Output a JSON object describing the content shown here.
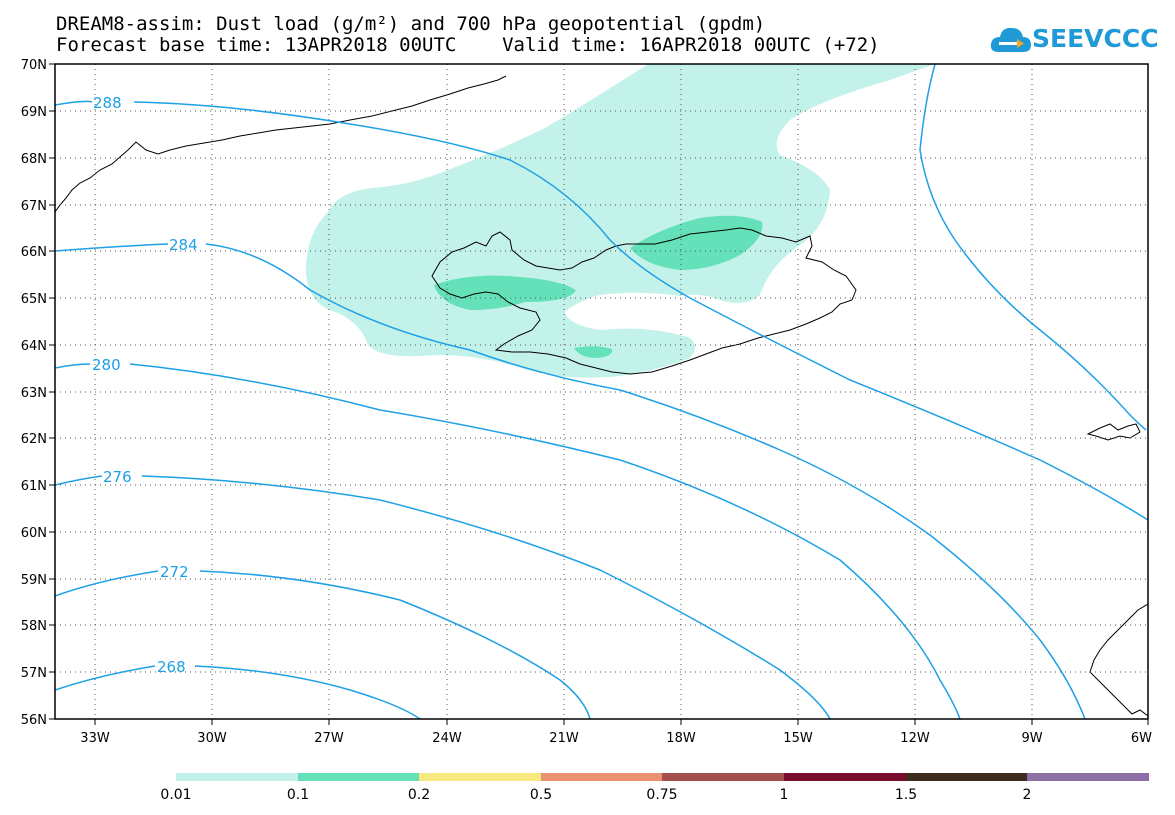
{
  "title": {
    "line1": "DREAM8-assim: Dust load (g/m²) and 700 hPa geopotential (gpdm)",
    "line2": "Forecast base time: 13APR2018 00UTC    Valid time: 16APR2018 00UTC (+72)"
  },
  "logo": {
    "text": "SEEVCCC",
    "icon": "cloud-icon",
    "color": "#1f9ad6"
  },
  "map": {
    "lat_range": [
      56,
      70
    ],
    "lon_range": [
      -34.5,
      -6
    ],
    "lat_labels": [
      "70N",
      "69N",
      "68N",
      "67N",
      "66N",
      "65N",
      "64N",
      "63N",
      "62N",
      "61N",
      "60N",
      "59N",
      "58N",
      "57N",
      "56N"
    ],
    "lon_labels": [
      {
        "lon": -33,
        "text": "33W"
      },
      {
        "lon": -30,
        "text": "30W"
      },
      {
        "lon": -27,
        "text": "27W"
      },
      {
        "lon": -24,
        "text": "24W"
      },
      {
        "lon": -21,
        "text": "21W"
      },
      {
        "lon": -18,
        "text": "18W"
      },
      {
        "lon": -15,
        "text": "15W"
      },
      {
        "lon": -12,
        "text": "12W"
      },
      {
        "lon": -9,
        "text": "9W"
      },
      {
        "lon": -6,
        "text": "6W"
      }
    ],
    "contour_color": "#1ea0e6",
    "contour_labels": [
      "288",
      "284",
      "280",
      "276",
      "272",
      "268"
    ]
  },
  "colorbar": {
    "colors": [
      "#c3f2ea",
      "#64e1b9",
      "#f8e882",
      "#e99171",
      "#a54f4c",
      "#7a0c2e",
      "#3e2b1b",
      "#8d6ea5"
    ],
    "labels": [
      "0.01",
      "0.1",
      "0.2",
      "0.5",
      "0.75",
      "1",
      "1.5",
      "2"
    ]
  }
}
